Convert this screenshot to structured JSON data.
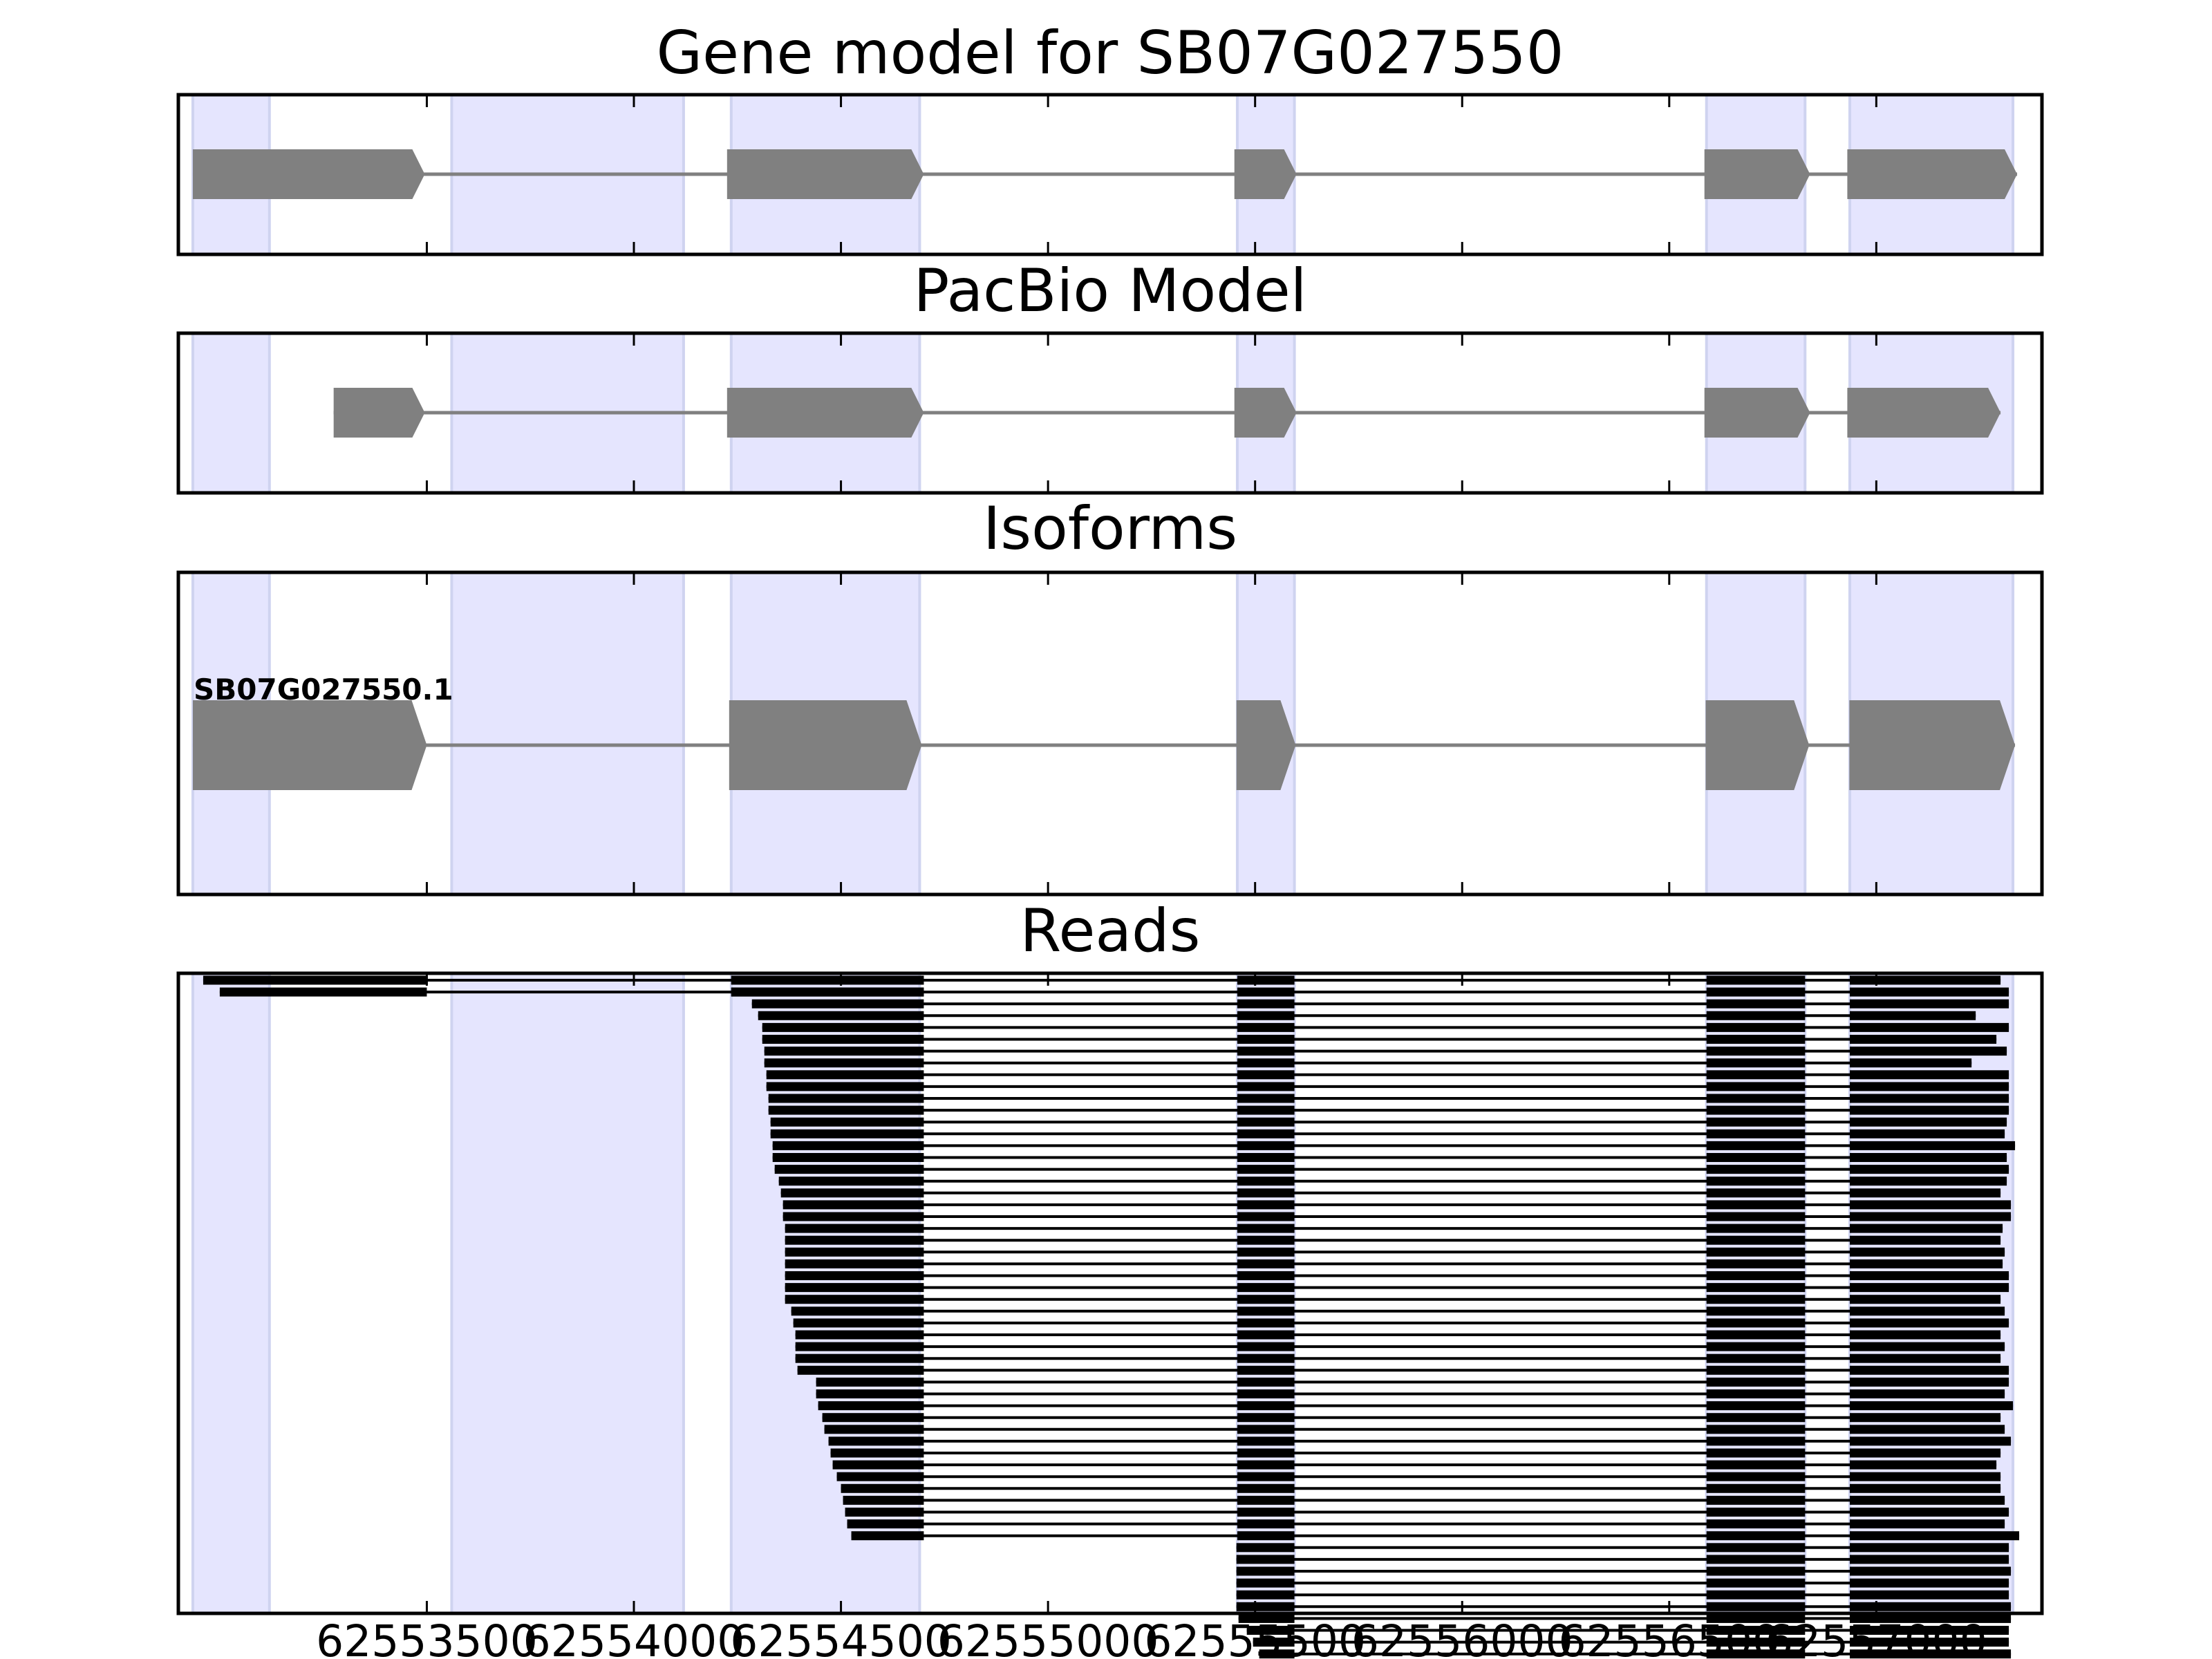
{
  "chart_data": {
    "type": "gene-track",
    "x_axis": {
      "range": [
        62552900,
        62557400
      ],
      "ticks": [
        62553500,
        62554000,
        62554500,
        62555000,
        62555500,
        62556000,
        62556500,
        62557000
      ],
      "tick_labels": [
        "62553500",
        "62554000",
        "62554500",
        "62555000",
        "62555500",
        "62556000",
        "62556500",
        "62557000"
      ]
    },
    "colors": {
      "exon_region": "#e5e5fe",
      "exon_region_edge": "#cfd3f0",
      "gene_exon": "#808080",
      "intron_line": "#808080",
      "read": "#000000",
      "frame": "#000000"
    },
    "exon_regions": [
      [
        62552935,
        62553120
      ],
      [
        62553560,
        62554120
      ],
      [
        62554235,
        62554690
      ],
      [
        62555457,
        62555595
      ],
      [
        62556590,
        62556828
      ],
      [
        62556936,
        62557330
      ]
    ],
    "panels": [
      {
        "title": "Gene model for SB07G027550",
        "exons": [
          [
            62552935,
            62553495
          ],
          [
            62554225,
            62554700
          ],
          [
            62555450,
            62555600
          ],
          [
            62556585,
            62556840
          ],
          [
            62556930,
            62557340
          ]
        ]
      },
      {
        "title": "PacBio Model",
        "exons": [
          [
            62553275,
            62553495
          ],
          [
            62554225,
            62554700
          ],
          [
            62555450,
            62555600
          ],
          [
            62556585,
            62556840
          ],
          [
            62556930,
            62557300
          ]
        ]
      },
      {
        "title": "Isoforms",
        "isoform_label": "SB07G027550.1",
        "exons": [
          [
            62552935,
            62553500
          ],
          [
            62554230,
            62554695
          ],
          [
            62555455,
            62555598
          ],
          [
            62556588,
            62556838
          ],
          [
            62556935,
            62557335
          ]
        ]
      },
      {
        "title": "Reads",
        "group_a": {
          "first_exon_start": [
            62554235,
            62554235,
            62554285,
            62554300,
            62554310,
            62554310,
            62554315,
            62554315,
            62554320,
            62554320,
            62554325,
            62554325,
            62554330,
            62554330,
            62554335,
            62554335,
            62554340,
            62554350,
            62554355,
            62554360,
            62554360,
            62554365,
            62554365,
            62554365,
            62554365,
            62554365,
            62554365,
            62554365,
            62554380,
            62554385,
            62554390,
            62554390,
            62554390,
            62554395,
            62554440,
            62554440,
            62554445,
            62554455,
            62554460,
            62554470,
            62554475,
            62554480,
            62554490,
            62554500,
            62554505,
            62554510,
            62554515,
            62554525
          ],
          "first_exon_end": 62554700,
          "last_exon_end": [
            62557300,
            62557320,
            62557320,
            62557240,
            62557320,
            62557290,
            62557315,
            62557230,
            62557320,
            62557320,
            62557320,
            62557320,
            62557315,
            62557310,
            62557335,
            62557315,
            62557320,
            62557315,
            62557300,
            62557325,
            62557325,
            62557305,
            62557300,
            62557310,
            62557305,
            62557320,
            62557320,
            62557300,
            62557310,
            62557320,
            62557300,
            62557310,
            62557300,
            62557320,
            62557320,
            62557310,
            62557330,
            62557300,
            62557310,
            62557325,
            62557300,
            62557290,
            62557300,
            62557300,
            62557310,
            62557320,
            62557310,
            62557345
          ]
        },
        "pre_reads": [
          {
            "start": 62552960,
            "end": 62553500
          },
          {
            "start": 62553000,
            "end": 62553500
          }
        ],
        "group_b": {
          "first_exon_start": [
            62555455,
            62555455,
            62555455,
            62555455,
            62555455,
            62555455,
            62555460,
            62555480,
            62555495,
            62555510,
            62555545
          ],
          "last_exon_end": [
            62557320,
            62557320,
            62557325,
            62557320,
            62557320,
            62557325,
            62557325,
            62557320,
            62557320,
            62557325,
            62557315
          ]
        },
        "tail_reads": [
          {
            "start": 62556590,
            "end": 62556840
          },
          {
            "start": 62557000,
            "end": 62557310
          },
          {
            "start": 62557000,
            "end": 62557310
          },
          {
            "start": 62557000,
            "end": 62557310
          }
        ]
      }
    ]
  }
}
